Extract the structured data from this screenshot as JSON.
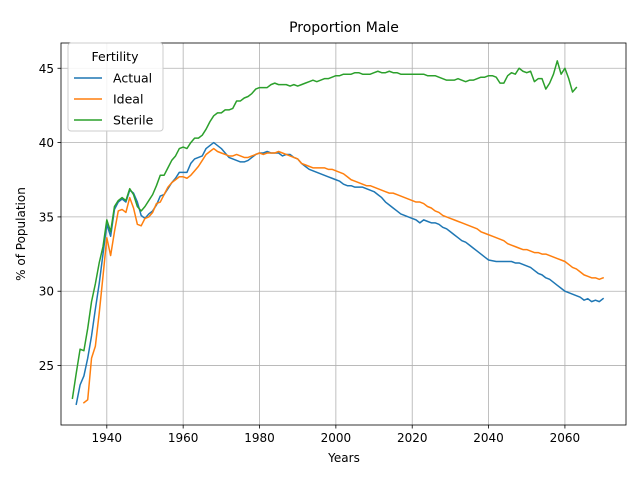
{
  "chart_data": {
    "type": "line",
    "title": "Proportion Male",
    "xlabel": "Years",
    "ylabel": "% of Population",
    "xlim": [
      1928,
      2076
    ],
    "ylim": [
      21,
      46.7
    ],
    "xticks": [
      1940,
      1960,
      1980,
      2000,
      2020,
      2040,
      2060
    ],
    "yticks": [
      25,
      30,
      35,
      40,
      45
    ],
    "grid": true,
    "legend": {
      "title": "Fertility",
      "placement": "top-left"
    },
    "series": [
      {
        "name": "Actual",
        "color": "#1f77b4",
        "x": [
          1932,
          1933,
          1934,
          1935,
          1936,
          1937,
          1938,
          1939,
          1940,
          1941,
          1942,
          1943,
          1944,
          1945,
          1946,
          1947,
          1948,
          1949,
          1950,
          1951,
          1952,
          1953,
          1954,
          1955,
          1956,
          1957,
          1958,
          1959,
          1960,
          1961,
          1962,
          1963,
          1964,
          1965,
          1966,
          1967,
          1968,
          1969,
          1970,
          1971,
          1972,
          1973,
          1974,
          1975,
          1976,
          1977,
          1978,
          1979,
          1980,
          1981,
          1982,
          1983,
          1984,
          1985,
          1986,
          1987,
          1988,
          1989,
          1990,
          1991,
          1992,
          1993,
          1994,
          1995,
          1996,
          1997,
          1998,
          1999,
          2000,
          2001,
          2002,
          2003,
          2004,
          2005,
          2006,
          2007,
          2008,
          2009,
          2010,
          2011,
          2012,
          2013,
          2014,
          2015,
          2016,
          2017,
          2018,
          2019,
          2020,
          2021,
          2022,
          2023,
          2024,
          2025,
          2026,
          2027,
          2028,
          2029,
          2030,
          2031,
          2032,
          2033,
          2034,
          2035,
          2036,
          2037,
          2038,
          2039,
          2040,
          2041,
          2042,
          2043,
          2044,
          2045,
          2046,
          2047,
          2048,
          2049,
          2050,
          2051,
          2052,
          2053,
          2054,
          2055,
          2056,
          2057,
          2058,
          2059,
          2060,
          2061,
          2062,
          2063,
          2064,
          2065,
          2066,
          2067,
          2068,
          2069,
          2070
        ],
        "values": [
          22.4,
          23.7,
          24.3,
          25.5,
          27.0,
          28.8,
          30.5,
          32.5,
          34.5,
          33.7,
          35.5,
          36.0,
          36.2,
          36.0,
          36.8,
          36.6,
          36.0,
          35.1,
          34.9,
          35.2,
          35.4,
          35.8,
          36.4,
          36.5,
          36.9,
          37.3,
          37.6,
          38.0,
          38.0,
          38.0,
          38.6,
          38.9,
          39.0,
          39.1,
          39.6,
          39.8,
          40.0,
          39.8,
          39.6,
          39.3,
          39.0,
          38.9,
          38.8,
          38.7,
          38.7,
          38.8,
          39.0,
          39.2,
          39.3,
          39.3,
          39.4,
          39.3,
          39.3,
          39.3,
          39.1,
          39.2,
          39.2,
          39.0,
          38.9,
          38.6,
          38.4,
          38.2,
          38.1,
          38.0,
          37.9,
          37.8,
          37.7,
          37.6,
          37.5,
          37.4,
          37.2,
          37.1,
          37.1,
          37.0,
          37.0,
          37.0,
          36.9,
          36.8,
          36.7,
          36.5,
          36.3,
          36.0,
          35.8,
          35.6,
          35.4,
          35.2,
          35.1,
          35.0,
          34.9,
          34.8,
          34.6,
          34.8,
          34.7,
          34.6,
          34.6,
          34.5,
          34.3,
          34.2,
          34.0,
          33.8,
          33.6,
          33.4,
          33.3,
          33.1,
          32.9,
          32.7,
          32.5,
          32.3,
          32.1,
          32.05,
          32.0,
          32.0,
          32.0,
          32.0,
          32.0,
          31.9,
          31.9,
          31.8,
          31.7,
          31.6,
          31.4,
          31.2,
          31.1,
          30.9,
          30.8,
          30.6,
          30.4,
          30.2,
          30.0,
          29.9,
          29.8,
          29.7,
          29.6,
          29.4,
          29.5,
          29.3,
          29.4,
          29.3,
          29.5
        ]
      },
      {
        "name": "Ideal",
        "color": "#ff7f0e",
        "x": [
          1934,
          1935,
          1936,
          1937,
          1938,
          1939,
          1940,
          1941,
          1942,
          1943,
          1944,
          1945,
          1946,
          1947,
          1948,
          1949,
          1950,
          1951,
          1952,
          1953,
          1954,
          1955,
          1956,
          1957,
          1958,
          1959,
          1960,
          1961,
          1962,
          1963,
          1964,
          1965,
          1966,
          1967,
          1968,
          1969,
          1970,
          1971,
          1972,
          1973,
          1974,
          1975,
          1976,
          1977,
          1978,
          1979,
          1980,
          1981,
          1982,
          1983,
          1984,
          1985,
          1986,
          1987,
          1988,
          1989,
          1990,
          1991,
          1992,
          1993,
          1994,
          1995,
          1996,
          1997,
          1998,
          1999,
          2000,
          2001,
          2002,
          2003,
          2004,
          2005,
          2006,
          2007,
          2008,
          2009,
          2010,
          2011,
          2012,
          2013,
          2014,
          2015,
          2016,
          2017,
          2018,
          2019,
          2020,
          2021,
          2022,
          2023,
          2024,
          2025,
          2026,
          2027,
          2028,
          2029,
          2030,
          2031,
          2032,
          2033,
          2034,
          2035,
          2036,
          2037,
          2038,
          2039,
          2040,
          2041,
          2042,
          2043,
          2044,
          2045,
          2046,
          2047,
          2048,
          2049,
          2050,
          2051,
          2052,
          2053,
          2054,
          2055,
          2056,
          2057,
          2058,
          2059,
          2060,
          2061,
          2062,
          2063,
          2064,
          2065,
          2066,
          2067,
          2068,
          2069,
          2070
        ],
        "values": [
          22.5,
          22.7,
          25.5,
          26.3,
          28.5,
          31.0,
          33.6,
          32.4,
          34.0,
          35.4,
          35.5,
          35.3,
          36.3,
          35.6,
          34.5,
          34.4,
          34.9,
          35.0,
          35.3,
          35.9,
          36.0,
          36.5,
          37.0,
          37.3,
          37.5,
          37.7,
          37.7,
          37.6,
          37.8,
          38.1,
          38.4,
          38.8,
          39.2,
          39.4,
          39.6,
          39.4,
          39.3,
          39.2,
          39.1,
          39.1,
          39.2,
          39.1,
          39.0,
          39.0,
          39.1,
          39.2,
          39.3,
          39.2,
          39.3,
          39.3,
          39.3,
          39.4,
          39.3,
          39.2,
          39.1,
          39.0,
          38.9,
          38.6,
          38.5,
          38.4,
          38.3,
          38.3,
          38.3,
          38.3,
          38.2,
          38.2,
          38.1,
          38.0,
          37.9,
          37.7,
          37.5,
          37.4,
          37.3,
          37.2,
          37.1,
          37.1,
          37.0,
          36.9,
          36.8,
          36.7,
          36.6,
          36.6,
          36.5,
          36.4,
          36.3,
          36.2,
          36.1,
          36.0,
          36.0,
          35.9,
          35.7,
          35.6,
          35.4,
          35.3,
          35.1,
          35.0,
          34.9,
          34.8,
          34.7,
          34.6,
          34.5,
          34.4,
          34.3,
          34.2,
          34.0,
          33.9,
          33.8,
          33.7,
          33.6,
          33.5,
          33.4,
          33.2,
          33.1,
          33.0,
          32.9,
          32.8,
          32.8,
          32.7,
          32.6,
          32.6,
          32.5,
          32.5,
          32.4,
          32.3,
          32.2,
          32.1,
          32.0,
          31.8,
          31.6,
          31.5,
          31.3,
          31.1,
          31.0,
          30.9,
          30.9,
          30.8,
          30.9
        ]
      },
      {
        "name": "Sterile",
        "color": "#2ca02c",
        "x": [
          1931,
          1932,
          1933,
          1934,
          1935,
          1936,
          1937,
          1938,
          1939,
          1940,
          1941,
          1942,
          1943,
          1944,
          1945,
          1946,
          1947,
          1948,
          1949,
          1950,
          1951,
          1952,
          1953,
          1954,
          1955,
          1956,
          1957,
          1958,
          1959,
          1960,
          1961,
          1962,
          1963,
          1964,
          1965,
          1966,
          1967,
          1968,
          1969,
          1970,
          1971,
          1972,
          1973,
          1974,
          1975,
          1976,
          1977,
          1978,
          1979,
          1980,
          1981,
          1982,
          1983,
          1984,
          1985,
          1986,
          1987,
          1988,
          1989,
          1990,
          1991,
          1992,
          1993,
          1994,
          1995,
          1996,
          1997,
          1998,
          1999,
          2000,
          2001,
          2002,
          2003,
          2004,
          2005,
          2006,
          2007,
          2008,
          2009,
          2010,
          2011,
          2012,
          2013,
          2014,
          2015,
          2016,
          2017,
          2018,
          2019,
          2020,
          2021,
          2022,
          2023,
          2024,
          2025,
          2026,
          2027,
          2028,
          2029,
          2030,
          2031,
          2032,
          2033,
          2034,
          2035,
          2036,
          2037,
          2038,
          2039,
          2040,
          2041,
          2042,
          2043,
          2044,
          2045,
          2046,
          2047,
          2048,
          2049,
          2050,
          2051,
          2052,
          2053,
          2054,
          2055,
          2056,
          2057,
          2058,
          2059,
          2060,
          2061,
          2062,
          2063
        ],
        "values": [
          22.8,
          24.5,
          26.1,
          26.0,
          27.5,
          29.3,
          30.5,
          31.9,
          33.0,
          34.8,
          34.0,
          35.7,
          36.1,
          36.3,
          36.1,
          36.9,
          36.5,
          35.7,
          35.4,
          35.7,
          36.1,
          36.5,
          37.1,
          37.8,
          37.8,
          38.3,
          38.8,
          39.1,
          39.6,
          39.7,
          39.6,
          40.0,
          40.3,
          40.3,
          40.5,
          40.9,
          41.4,
          41.8,
          42.0,
          42.0,
          42.2,
          42.2,
          42.3,
          42.8,
          42.8,
          43.0,
          43.1,
          43.3,
          43.6,
          43.7,
          43.7,
          43.7,
          43.9,
          44.0,
          43.9,
          43.9,
          43.9,
          43.8,
          43.9,
          43.8,
          43.9,
          44.0,
          44.1,
          44.2,
          44.1,
          44.2,
          44.3,
          44.3,
          44.4,
          44.5,
          44.5,
          44.6,
          44.6,
          44.6,
          44.7,
          44.7,
          44.6,
          44.6,
          44.6,
          44.7,
          44.8,
          44.7,
          44.7,
          44.8,
          44.7,
          44.7,
          44.6,
          44.6,
          44.6,
          44.6,
          44.6,
          44.6,
          44.6,
          44.5,
          44.5,
          44.5,
          44.4,
          44.3,
          44.2,
          44.2,
          44.2,
          44.3,
          44.2,
          44.1,
          44.2,
          44.2,
          44.3,
          44.4,
          44.4,
          44.5,
          44.5,
          44.4,
          44.0,
          44.0,
          44.5,
          44.7,
          44.6,
          45.0,
          44.8,
          44.7,
          44.8,
          44.1,
          44.3,
          44.3,
          43.6,
          44.0,
          44.6,
          45.5,
          44.6,
          45.0,
          44.3,
          43.4,
          43.7
        ]
      }
    ]
  }
}
